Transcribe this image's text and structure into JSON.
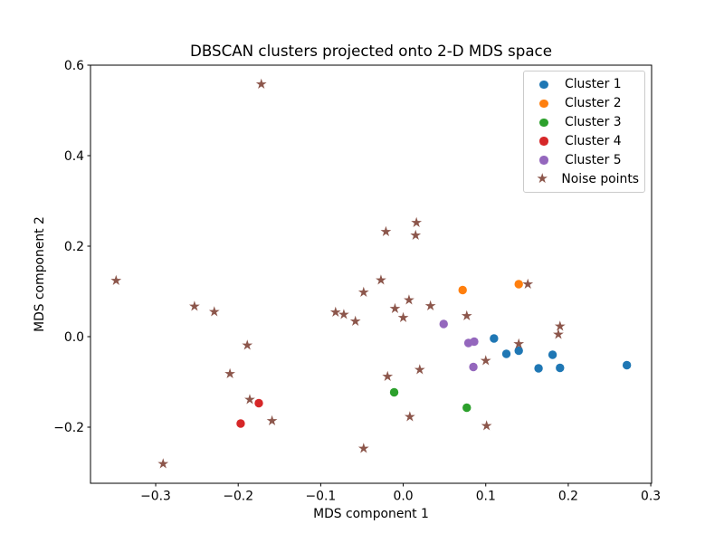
{
  "figure": {
    "background": "#ffffff",
    "spine_color": "#000000"
  },
  "chart_data": {
    "type": "scatter",
    "title": "DBSCAN clusters projected onto 2-D MDS space",
    "xlabel": "MDS component 1",
    "ylabel": "MDS component 2",
    "xlim": [
      -0.379,
      0.301
    ],
    "ylim": [
      -0.324,
      0.6
    ],
    "x_ticks": [
      -0.3,
      -0.2,
      -0.1,
      0.0,
      0.1,
      0.2,
      0.3
    ],
    "x_tick_labels": [
      "−0.3",
      "−0.2",
      "−0.1",
      "0.0",
      "0.1",
      "0.2",
      "0.3"
    ],
    "y_ticks": [
      -0.2,
      0.0,
      0.2,
      0.4,
      0.6
    ],
    "y_tick_labels": [
      "−0.2",
      "0.0",
      "0.2",
      "0.4",
      "0.6"
    ],
    "grid": false,
    "legend_position": "upper right",
    "series": [
      {
        "name": "Cluster 1",
        "marker": "circle",
        "color": "#1f77b4",
        "points": [
          [
            0.11,
            -0.004
          ],
          [
            0.125,
            -0.038
          ],
          [
            0.14,
            -0.031
          ],
          [
            0.164,
            -0.07
          ],
          [
            0.181,
            -0.04
          ],
          [
            0.19,
            -0.069
          ],
          [
            0.271,
            -0.063
          ]
        ]
      },
      {
        "name": "Cluster 2",
        "marker": "circle",
        "color": "#ff7f0e",
        "points": [
          [
            0.072,
            0.103
          ],
          [
            0.14,
            0.116
          ]
        ]
      },
      {
        "name": "Cluster 3",
        "marker": "circle",
        "color": "#2ca02c",
        "points": [
          [
            -0.011,
            -0.123
          ],
          [
            0.077,
            -0.157
          ]
        ]
      },
      {
        "name": "Cluster 4",
        "marker": "circle",
        "color": "#d62728",
        "points": [
          [
            -0.175,
            -0.147
          ],
          [
            -0.197,
            -0.192
          ]
        ]
      },
      {
        "name": "Cluster 5",
        "marker": "circle",
        "color": "#9467bd",
        "points": [
          [
            0.049,
            0.028
          ],
          [
            0.079,
            -0.014
          ],
          [
            0.086,
            -0.011
          ],
          [
            0.085,
            -0.067
          ]
        ]
      },
      {
        "name": "Noise points",
        "marker": "star",
        "color": "#8c564b",
        "points": [
          [
            -0.348,
            0.124
          ],
          [
            -0.253,
            0.067
          ],
          [
            -0.229,
            0.055
          ],
          [
            -0.189,
            -0.019
          ],
          [
            -0.21,
            -0.082
          ],
          [
            -0.186,
            -0.139
          ],
          [
            -0.159,
            -0.186
          ],
          [
            -0.291,
            -0.281
          ],
          [
            -0.172,
            0.558
          ],
          [
            -0.021,
            0.232
          ],
          [
            0.016,
            0.252
          ],
          [
            0.015,
            0.224
          ],
          [
            -0.027,
            0.125
          ],
          [
            -0.048,
            0.098
          ],
          [
            -0.082,
            0.054
          ],
          [
            -0.072,
            0.049
          ],
          [
            -0.058,
            0.034
          ],
          [
            -0.01,
            0.062
          ],
          [
            0.007,
            0.081
          ],
          [
            0.033,
            0.068
          ],
          [
            0.0,
            0.042
          ],
          [
            0.077,
            0.046
          ],
          [
            0.151,
            0.116
          ],
          [
            0.19,
            0.023
          ],
          [
            0.188,
            0.005
          ],
          [
            0.14,
            -0.016
          ],
          [
            0.1,
            -0.053
          ],
          [
            0.02,
            -0.073
          ],
          [
            -0.019,
            -0.088
          ],
          [
            0.008,
            -0.177
          ],
          [
            0.101,
            -0.197
          ],
          [
            -0.048,
            -0.247
          ]
        ]
      }
    ]
  },
  "icons": {
    "star_marker": "★"
  }
}
